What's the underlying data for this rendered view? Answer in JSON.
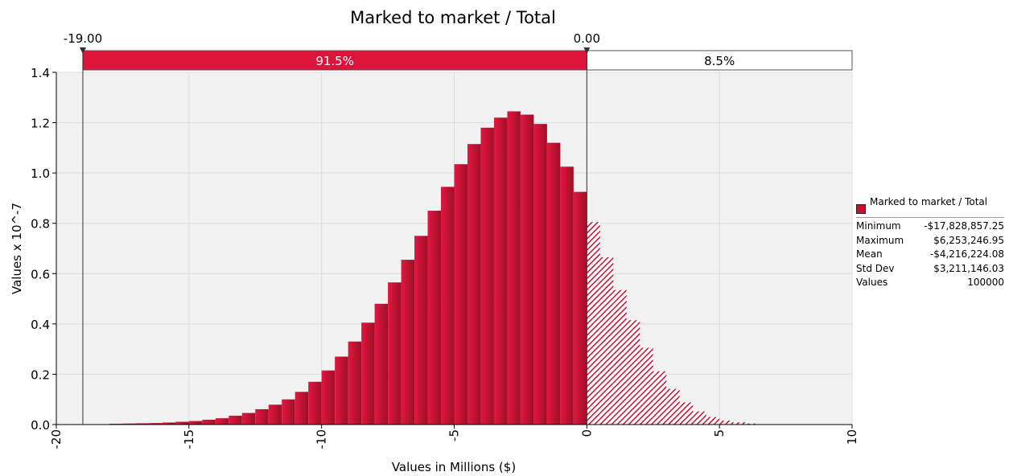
{
  "chart_data": {
    "type": "bar",
    "title": "Marked to market / Total",
    "xlabel": "Values in Millions ($)",
    "ylabel": "Values x 10^-7",
    "xlim": [
      -20,
      10
    ],
    "ylim": [
      0,
      1.4
    ],
    "x_ticks": [
      "-20",
      "-15",
      "-10",
      "-5",
      "0",
      "5",
      "10"
    ],
    "y_ticks": [
      "0.0",
      "0.2",
      "0.4",
      "0.6",
      "0.8",
      "1.0",
      "1.2",
      "1.4"
    ],
    "grid": true,
    "bin_width": 0.5,
    "bin_starts": [
      -18,
      -17.5,
      -17,
      -16.5,
      -16,
      -15.5,
      -15,
      -14.5,
      -14,
      -13.5,
      -13,
      -12.5,
      -12,
      -11.5,
      -11,
      -10.5,
      -10,
      -9.5,
      -9,
      -8.5,
      -8,
      -7.5,
      -7,
      -6.5,
      -6,
      -5.5,
      -5,
      -4.5,
      -4,
      -3.5,
      -3,
      -2.5,
      -2,
      -1.5,
      -1,
      -0.5,
      0,
      0.5,
      1,
      1.5,
      2,
      2.5,
      3,
      3.5,
      4,
      4.5,
      5,
      5.5,
      6
    ],
    "values": [
      0.003,
      0.004,
      0.005,
      0.006,
      0.008,
      0.011,
      0.014,
      0.019,
      0.025,
      0.035,
      0.046,
      0.061,
      0.079,
      0.1,
      0.13,
      0.17,
      0.215,
      0.27,
      0.33,
      0.405,
      0.48,
      0.565,
      0.655,
      0.75,
      0.85,
      0.945,
      1.035,
      1.115,
      1.18,
      1.22,
      1.245,
      1.232,
      1.195,
      1.12,
      1.025,
      0.925,
      0.805,
      0.665,
      0.535,
      0.415,
      0.305,
      0.212,
      0.142,
      0.088,
      0.052,
      0.03,
      0.016,
      0.009,
      0.004
    ],
    "bar_color": "#c8102e",
    "tail_pattern": "hatched",
    "slider": {
      "left_value": "-19.00",
      "right_value": "0.00",
      "left_pct": "91.5%",
      "right_pct": "8.5%",
      "left_marker": -19,
      "right_marker": 0,
      "left_fill": "#dc143c"
    },
    "legend": {
      "series_name": "Marked to market / Total",
      "color": "#c8102e",
      "placement": "right",
      "stats": [
        {
          "label": "Minimum",
          "value": "-$17,828,857.25"
        },
        {
          "label": "Maximum",
          "value": "$6,253,246.95"
        },
        {
          "label": "Mean",
          "value": "-$4,216,224.08"
        },
        {
          "label": "Std Dev",
          "value": "$3,211,146.03"
        },
        {
          "label": "Values",
          "value": "100000"
        }
      ]
    }
  }
}
